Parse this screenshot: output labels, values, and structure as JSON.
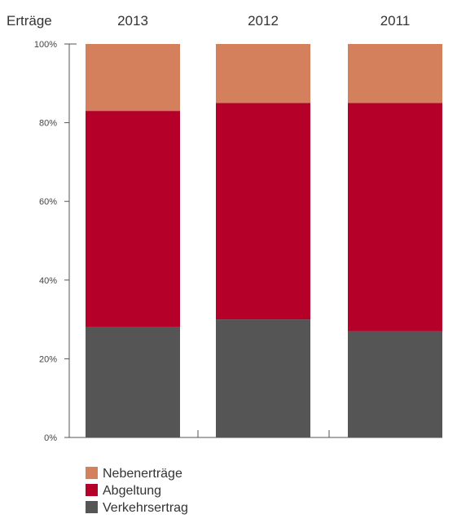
{
  "chart_data": {
    "type": "bar",
    "stacked": true,
    "normalized": true,
    "title": "Erträge",
    "categories": [
      "2013",
      "2012",
      "2011"
    ],
    "series": [
      {
        "name": "Verkehrsertrag",
        "values": [
          28,
          30,
          27
        ],
        "color": "#555555"
      },
      {
        "name": "Abgeltung",
        "values": [
          55,
          55,
          58
        ],
        "color": "#b5002a"
      },
      {
        "name": "Nebenerträge",
        "values": [
          17,
          15,
          15
        ],
        "color": "#d4805c"
      }
    ],
    "legend_order": [
      "Nebenerträge",
      "Abgeltung",
      "Verkehrsertrag"
    ],
    "ylim": [
      0,
      100
    ],
    "yticks": [
      "0%",
      "20%",
      "40%",
      "60%",
      "80%",
      "100%"
    ],
    "ytick_values": [
      0,
      20,
      40,
      60,
      80,
      100
    ],
    "legend_position": "bottom-left",
    "grid": false
  }
}
